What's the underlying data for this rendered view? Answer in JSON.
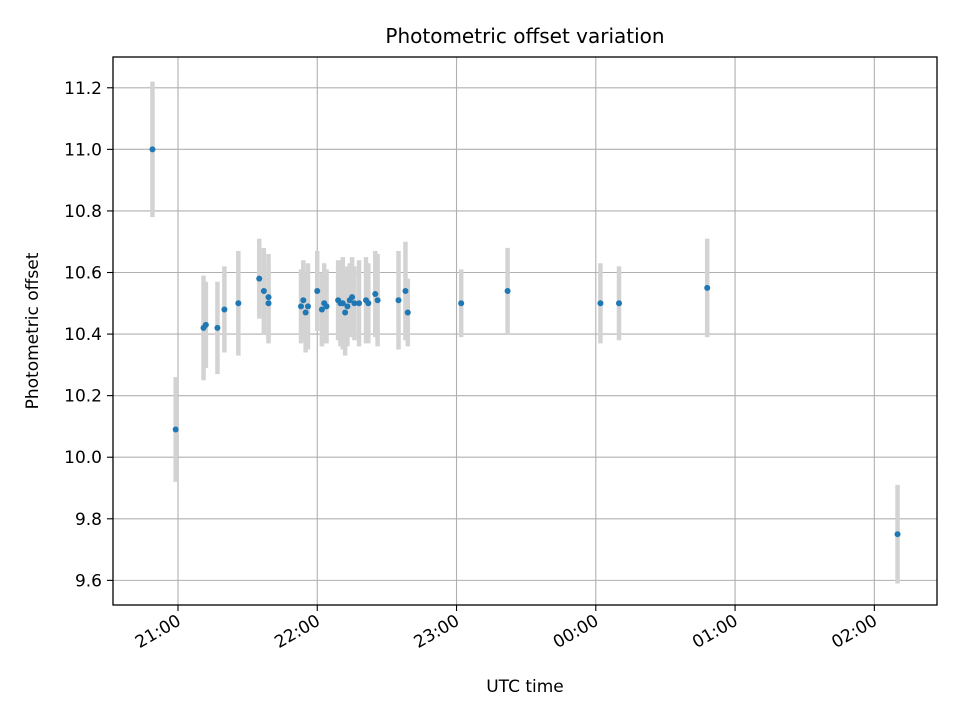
{
  "chart_data": {
    "type": "scatter",
    "title": "Photometric offset variation",
    "xlabel": "UTC time",
    "ylabel": "Photometric offset",
    "x_unit": "UTC time (HH:MM, times after midnight on the following day)",
    "xlim": [
      "20:32",
      "02:27"
    ],
    "ylim": [
      9.52,
      11.3
    ],
    "x_ticks": [
      "21:00",
      "22:00",
      "23:00",
      "00:00",
      "01:00",
      "02:00"
    ],
    "y_ticks": [
      9.6,
      9.8,
      10.0,
      10.2,
      10.4,
      10.6,
      10.8,
      11.0,
      11.2
    ],
    "grid": true,
    "colors": {
      "marker": "#1f77b4",
      "errorbar": "#d3d3d3",
      "grid": "#b0b0b0"
    },
    "series": [
      {
        "x": [
          "20:49",
          "20:59",
          "21:11",
          "21:12",
          "21:17",
          "21:20",
          "21:26",
          "21:35",
          "21:37",
          "21:39",
          "21:39",
          "21:53",
          "21:54",
          "21:55",
          "21:56",
          "22:00",
          "22:02",
          "22:03",
          "22:04",
          "22:09",
          "22:10",
          "22:11",
          "22:12",
          "22:13",
          "22:14",
          "22:15",
          "22:16",
          "22:18",
          "22:21",
          "22:22",
          "22:25",
          "22:26",
          "22:35",
          "22:38",
          "22:39",
          "23:02",
          "23:22",
          "00:02",
          "00:10",
          "00:48",
          "02:10"
        ],
        "y": [
          11.0,
          10.09,
          10.42,
          10.43,
          10.42,
          10.48,
          10.5,
          10.58,
          10.54,
          10.52,
          10.5,
          10.49,
          10.51,
          10.47,
          10.49,
          10.54,
          10.48,
          10.5,
          10.49,
          10.51,
          10.5,
          10.5,
          10.47,
          10.49,
          10.51,
          10.52,
          10.5,
          10.5,
          10.51,
          10.5,
          10.53,
          10.51,
          10.51,
          10.54,
          10.47,
          10.5,
          10.54,
          10.5,
          10.5,
          10.55,
          9.75
        ],
        "err": [
          0.22,
          0.17,
          0.17,
          0.14,
          0.15,
          0.14,
          0.17,
          0.13,
          0.14,
          0.14,
          0.13,
          0.12,
          0.13,
          0.13,
          0.14,
          0.13,
          0.12,
          0.13,
          0.12,
          0.13,
          0.14,
          0.15,
          0.14,
          0.13,
          0.12,
          0.13,
          0.12,
          0.14,
          0.14,
          0.13,
          0.14,
          0.15,
          0.16,
          0.16,
          0.11,
          0.11,
          0.14,
          0.13,
          0.12,
          0.16,
          0.16
        ]
      }
    ]
  }
}
